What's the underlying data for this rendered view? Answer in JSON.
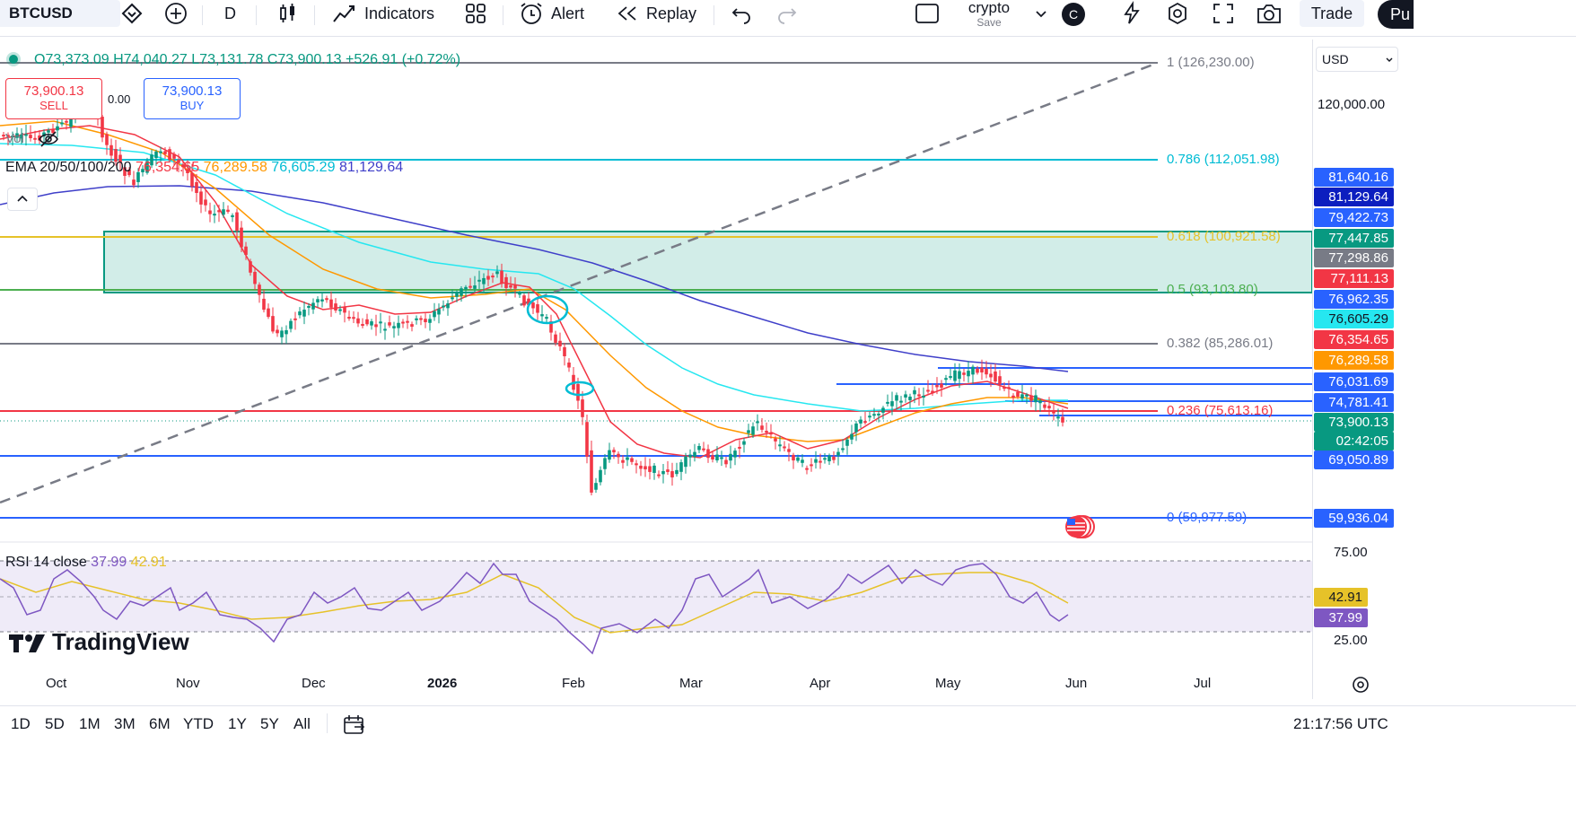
{
  "toolbar": {
    "symbol": "BTCUSD",
    "interval": "D",
    "indicators_label": "Indicators",
    "alert_label": "Alert",
    "replay_label": "Replay",
    "layout_name": "crypto",
    "layout_status": "Save",
    "avatar_letter": "C",
    "trade_label": "Trade",
    "publish_label": "Pu"
  },
  "ohlc": {
    "open": "O73,373.09",
    "high": "H74,040.27",
    "low": "L73,131.78",
    "close": "C73,900.13",
    "change": "+526.91 (+0.72%)"
  },
  "trade_widget": {
    "sell_price": "73,900.13",
    "sell_label": "SELL",
    "spread": "0.00",
    "buy_price": "73,900.13",
    "buy_label": "BUY"
  },
  "volume_label": "Vol",
  "ema_legend": {
    "name": "EMA 20/50/100/200",
    "v20": "76,354.65",
    "v50": "76,289.58",
    "v100": "76,605.29",
    "v200": "81,129.64"
  },
  "fib_levels": [
    {
      "label": "1 (126,230.00)",
      "color": "#787b86"
    },
    {
      "label": "0.786 (112,051.98)",
      "color": "#00bcd4"
    },
    {
      "label": "0.618 (100,921.58)",
      "color": "#e6c229"
    },
    {
      "label": "0.5 (93,103.80)",
      "color": "#4caf50"
    },
    {
      "label": "0.382 (85,286.01)",
      "color": "#787b86"
    },
    {
      "label": "0.236 (75,613.16)",
      "color": "#f23645"
    },
    {
      "label": "0 (59,977.59)",
      "color": "#2962ff"
    }
  ],
  "currency": "USD",
  "price_axis": {
    "tick_120000": "120,000.00",
    "tick_75": "75.00",
    "tick_25": "25.00"
  },
  "price_labels": [
    {
      "text": "81,640.16",
      "color": "#2962ff"
    },
    {
      "text": "81,129.64",
      "color": "#0c1ebf"
    },
    {
      "text": "79,422.73",
      "color": "#2962ff"
    },
    {
      "text": "77,447.85",
      "color": "#089981"
    },
    {
      "text": "77,298.86",
      "color": "#787b86"
    },
    {
      "text": "77,111.13",
      "color": "#f23645"
    },
    {
      "text": "76,962.35",
      "color": "#2962ff"
    },
    {
      "text": "76,605.29",
      "color": "#26e7f0"
    },
    {
      "text": "76,354.65",
      "color": "#f23645"
    },
    {
      "text": "76,289.58",
      "color": "#ff9800"
    },
    {
      "text": "76,031.69",
      "color": "#2962ff"
    },
    {
      "text": "74,781.41",
      "color": "#2962ff"
    },
    {
      "text": "73,900.13",
      "color": "#089981"
    },
    {
      "text": "02:42:05",
      "color": "#089981"
    },
    {
      "text": "69,050.89",
      "color": "#2962ff"
    },
    {
      "text": "59,936.04",
      "color": "#2962ff"
    }
  ],
  "rsi": {
    "legend_name": "RSI 14 close",
    "value": "37.99",
    "ma_value": "42.91",
    "label_ma": "42.91",
    "label_value": "37.99"
  },
  "x_axis": [
    "Oct",
    "Nov",
    "Dec",
    "2026",
    "Feb",
    "Mar",
    "Apr",
    "May",
    "Jun",
    "Jul"
  ],
  "ranges": [
    "1D",
    "5D",
    "1M",
    "3M",
    "6M",
    "YTD",
    "1Y",
    "5Y",
    "All"
  ],
  "clock": "21:17:56 UTC",
  "watermark": "TradingView",
  "colors": {
    "up": "#089981",
    "down": "#f23645",
    "ema20": "#f23645",
    "ema50": "#ff9800",
    "ema100": "#26e7f0",
    "ema200": "#3f3fc9",
    "rsi": "#7e57c2",
    "rsi_ma": "#e6c229"
  }
}
